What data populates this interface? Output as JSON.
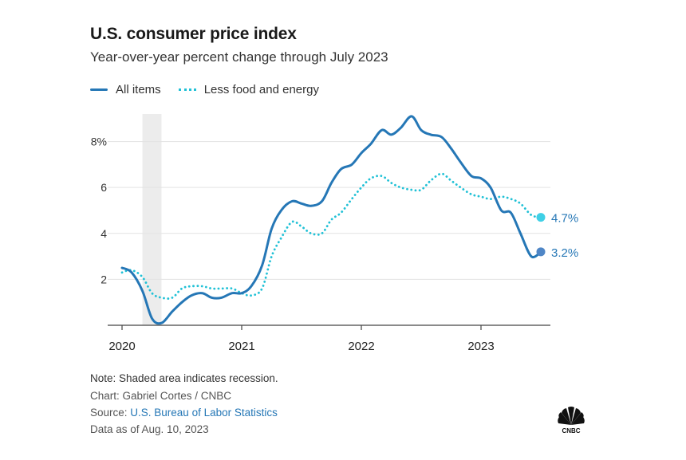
{
  "header": {
    "title": "U.S. consumer price index",
    "subtitle": "Year-over-year percent change through July 2023"
  },
  "legend": {
    "all_items": "All items",
    "core": "Less food and energy"
  },
  "colors": {
    "all_items": "#2577b6",
    "core": "#21c1d6",
    "all_items_dot": "#4f86c6",
    "core_dot": "#3fd0e6",
    "recession": "#ececec",
    "grid": "#e3e3e3",
    "axis": "#444444",
    "end_label": "#2577b6"
  },
  "footer": {
    "note": "Note: Shaded area indicates recession.",
    "credit": "Chart: Gabriel Cortes / CNBC",
    "source_prefix": "Source: ",
    "source_link": "U.S. Bureau of Labor Statistics",
    "as_of": "Data as of Aug. 10, 2023"
  },
  "logo": {
    "text": "CNBC"
  },
  "chart_data": {
    "type": "line",
    "title": "U.S. consumer price index",
    "subtitle": "Year-over-year percent change through July 2023",
    "xlabel": "",
    "ylabel": "",
    "x_ticks": [
      {
        "value": 2020,
        "label": "2020"
      },
      {
        "value": 2021,
        "label": "2021"
      },
      {
        "value": 2022,
        "label": "2022"
      },
      {
        "value": 2023,
        "label": "2023"
      }
    ],
    "y_ticks": [
      {
        "value": 2,
        "label": "2"
      },
      {
        "value": 4,
        "label": "4"
      },
      {
        "value": 6,
        "label": "6"
      },
      {
        "value": 8,
        "label": "8%"
      }
    ],
    "xlim": [
      2020,
      2023.6
    ],
    "ylim": [
      0,
      9.2
    ],
    "recession": [
      2020.17,
      2020.33
    ],
    "series": [
      {
        "name": "All items",
        "style": "solid",
        "end_label": "3.2%",
        "points": [
          [
            2020.0,
            2.5
          ],
          [
            2020.08,
            2.3
          ],
          [
            2020.17,
            1.5
          ],
          [
            2020.25,
            0.3
          ],
          [
            2020.33,
            0.1
          ],
          [
            2020.42,
            0.6
          ],
          [
            2020.5,
            1.0
          ],
          [
            2020.58,
            1.3
          ],
          [
            2020.67,
            1.4
          ],
          [
            2020.75,
            1.2
          ],
          [
            2020.83,
            1.2
          ],
          [
            2020.92,
            1.4
          ],
          [
            2021.0,
            1.4
          ],
          [
            2021.08,
            1.7
          ],
          [
            2021.17,
            2.6
          ],
          [
            2021.25,
            4.2
          ],
          [
            2021.33,
            5.0
          ],
          [
            2021.42,
            5.4
          ],
          [
            2021.5,
            5.3
          ],
          [
            2021.58,
            5.2
          ],
          [
            2021.67,
            5.4
          ],
          [
            2021.75,
            6.2
          ],
          [
            2021.83,
            6.8
          ],
          [
            2021.92,
            7.0
          ],
          [
            2022.0,
            7.5
          ],
          [
            2022.08,
            7.9
          ],
          [
            2022.17,
            8.5
          ],
          [
            2022.25,
            8.3
          ],
          [
            2022.33,
            8.6
          ],
          [
            2022.42,
            9.1
          ],
          [
            2022.5,
            8.5
          ],
          [
            2022.58,
            8.3
          ],
          [
            2022.67,
            8.2
          ],
          [
            2022.75,
            7.7
          ],
          [
            2022.83,
            7.1
          ],
          [
            2022.92,
            6.5
          ],
          [
            2023.0,
            6.4
          ],
          [
            2023.08,
            6.0
          ],
          [
            2023.17,
            5.0
          ],
          [
            2023.25,
            4.9
          ],
          [
            2023.33,
            4.0
          ],
          [
            2023.42,
            3.0
          ],
          [
            2023.5,
            3.2
          ]
        ]
      },
      {
        "name": "Less food and energy",
        "style": "dotted",
        "end_label": "4.7%",
        "points": [
          [
            2020.0,
            2.3
          ],
          [
            2020.08,
            2.4
          ],
          [
            2020.17,
            2.1
          ],
          [
            2020.25,
            1.4
          ],
          [
            2020.33,
            1.2
          ],
          [
            2020.42,
            1.2
          ],
          [
            2020.5,
            1.6
          ],
          [
            2020.58,
            1.7
          ],
          [
            2020.67,
            1.7
          ],
          [
            2020.75,
            1.6
          ],
          [
            2020.83,
            1.6
          ],
          [
            2020.92,
            1.6
          ],
          [
            2021.0,
            1.4
          ],
          [
            2021.08,
            1.3
          ],
          [
            2021.17,
            1.6
          ],
          [
            2021.25,
            3.0
          ],
          [
            2021.33,
            3.8
          ],
          [
            2021.42,
            4.5
          ],
          [
            2021.5,
            4.3
          ],
          [
            2021.58,
            4.0
          ],
          [
            2021.67,
            4.0
          ],
          [
            2021.75,
            4.6
          ],
          [
            2021.83,
            4.9
          ],
          [
            2021.92,
            5.5
          ],
          [
            2022.0,
            6.0
          ],
          [
            2022.08,
            6.4
          ],
          [
            2022.17,
            6.5
          ],
          [
            2022.25,
            6.2
          ],
          [
            2022.33,
            6.0
          ],
          [
            2022.42,
            5.9
          ],
          [
            2022.5,
            5.9
          ],
          [
            2022.58,
            6.3
          ],
          [
            2022.67,
            6.6
          ],
          [
            2022.75,
            6.3
          ],
          [
            2022.83,
            6.0
          ],
          [
            2022.92,
            5.7
          ],
          [
            2023.0,
            5.6
          ],
          [
            2023.08,
            5.5
          ],
          [
            2023.17,
            5.6
          ],
          [
            2023.25,
            5.5
          ],
          [
            2023.33,
            5.3
          ],
          [
            2023.42,
            4.8
          ],
          [
            2023.5,
            4.7
          ]
        ]
      }
    ]
  }
}
